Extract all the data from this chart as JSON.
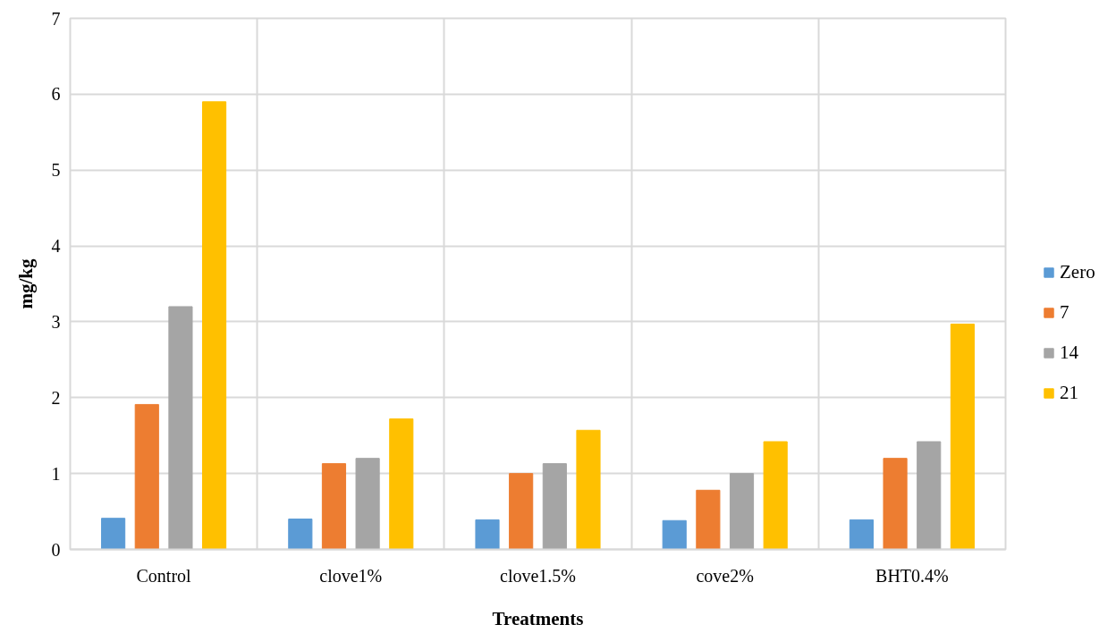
{
  "chart_data": {
    "type": "bar",
    "xlabel": "Treatments",
    "ylabel": "mg/kg",
    "categories": [
      "Control",
      "clove1%",
      "clove1.5%",
      "cove2%",
      "BHT0.4%"
    ],
    "series": [
      {
        "name": "Zero",
        "color": "#5b9bd5",
        "values": [
          0.41,
          0.4,
          0.39,
          0.38,
          0.39
        ]
      },
      {
        "name": "7",
        "color": "#ed7d31",
        "values": [
          1.91,
          1.13,
          1.0,
          0.78,
          1.2
        ]
      },
      {
        "name": "14",
        "color": "#a5a5a5",
        "values": [
          3.2,
          1.2,
          1.13,
          1.0,
          1.42
        ]
      },
      {
        "name": "21",
        "color": "#ffc000",
        "values": [
          5.9,
          1.72,
          1.57,
          1.42,
          2.97
        ]
      }
    ],
    "ylim": [
      0,
      7
    ],
    "yticks": [
      0,
      1,
      2,
      3,
      4,
      5,
      6,
      7
    ],
    "grid": true,
    "legend": "right"
  }
}
